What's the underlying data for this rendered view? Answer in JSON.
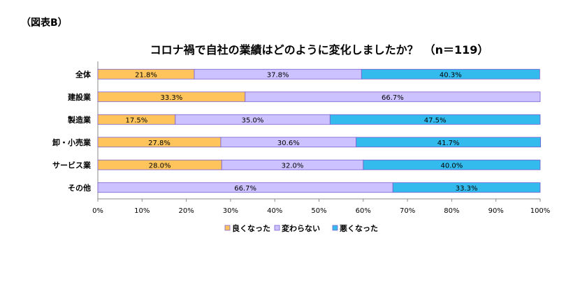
{
  "figure_label": "（図表B）",
  "chart_data": {
    "type": "bar",
    "orientation": "horizontal",
    "stacked": "100%",
    "title": "コロナ禍で自社の業績はどのように変化しましたか？　（n＝119）",
    "categories": [
      "全体",
      "建設業",
      "製造業",
      "卸・小売業",
      "サービス業",
      "その他"
    ],
    "series": [
      {
        "name": "良くなった",
        "color": "#ffc55c",
        "values": [
          21.8,
          33.3,
          17.5,
          27.8,
          28.0,
          0
        ]
      },
      {
        "name": "変わらない",
        "color": "#ccc2ff",
        "values": [
          37.8,
          66.7,
          35.0,
          30.6,
          32.0,
          66.7
        ]
      },
      {
        "name": "悪くなった",
        "color": "#33bbee",
        "values": [
          40.3,
          0,
          47.5,
          41.7,
          40.0,
          33.3
        ]
      }
    ],
    "xlim": [
      0,
      100
    ],
    "xticks": [
      "0%",
      "10%",
      "20%",
      "30%",
      "40%",
      "50%",
      "60%",
      "70%",
      "80%",
      "90%",
      "100%"
    ],
    "legend_position": "bottom",
    "grid": false
  }
}
